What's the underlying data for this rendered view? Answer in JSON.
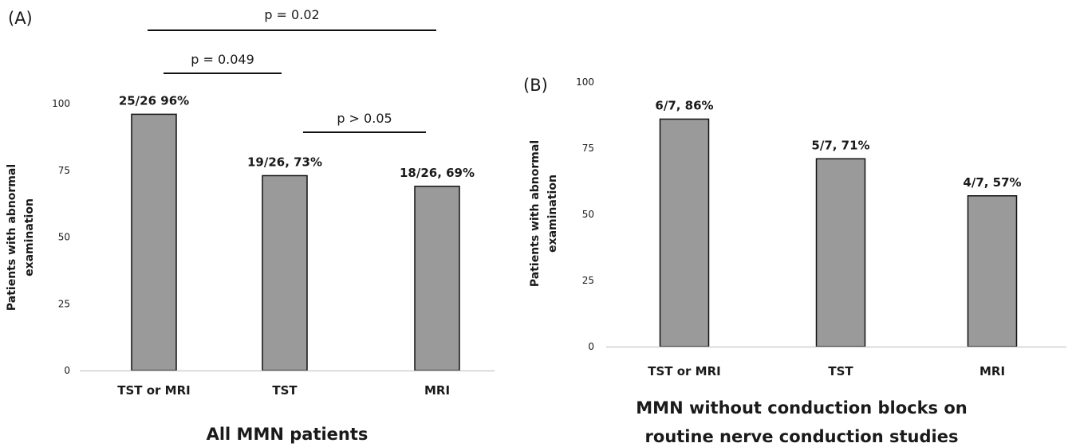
{
  "chart_data": [
    {
      "type": "bar",
      "panel_label": "(A)",
      "categories": [
        "TST or MRI",
        "TST",
        "MRI"
      ],
      "values": [
        96,
        73,
        69
      ],
      "data_labels": [
        "25/26 96%",
        "19/26, 73%",
        "18/26, 69%"
      ],
      "ylabel": "Patients with abnormal examination",
      "xlabel": "All MMN patients",
      "ylim": [
        0,
        100
      ],
      "yticks": [
        0,
        25,
        50,
        75,
        100
      ],
      "comparisons": [
        {
          "from": 0,
          "to": 1,
          "label": "p = 0.049"
        },
        {
          "from": 0,
          "to": 2,
          "label": "p = 0.02"
        },
        {
          "from": 1,
          "to": 2,
          "label": "p > 0.05"
        }
      ],
      "grid": false,
      "bar_color": "#9a9a9a"
    },
    {
      "type": "bar",
      "panel_label": "(B)",
      "categories": [
        "TST or MRI",
        "TST",
        "MRI"
      ],
      "values": [
        86,
        71,
        57
      ],
      "data_labels": [
        "6/7, 86%",
        "5/7, 71%",
        "4/7, 57%"
      ],
      "ylabel": "Patients with abnormal examination",
      "xlabel_lines": [
        "MMN without conduction blocks on",
        "routine nerve conduction studies"
      ],
      "ylim": [
        0,
        100
      ],
      "yticks": [
        0,
        25,
        50,
        75,
        100
      ],
      "grid": false,
      "bar_color": "#9a9a9a"
    }
  ]
}
